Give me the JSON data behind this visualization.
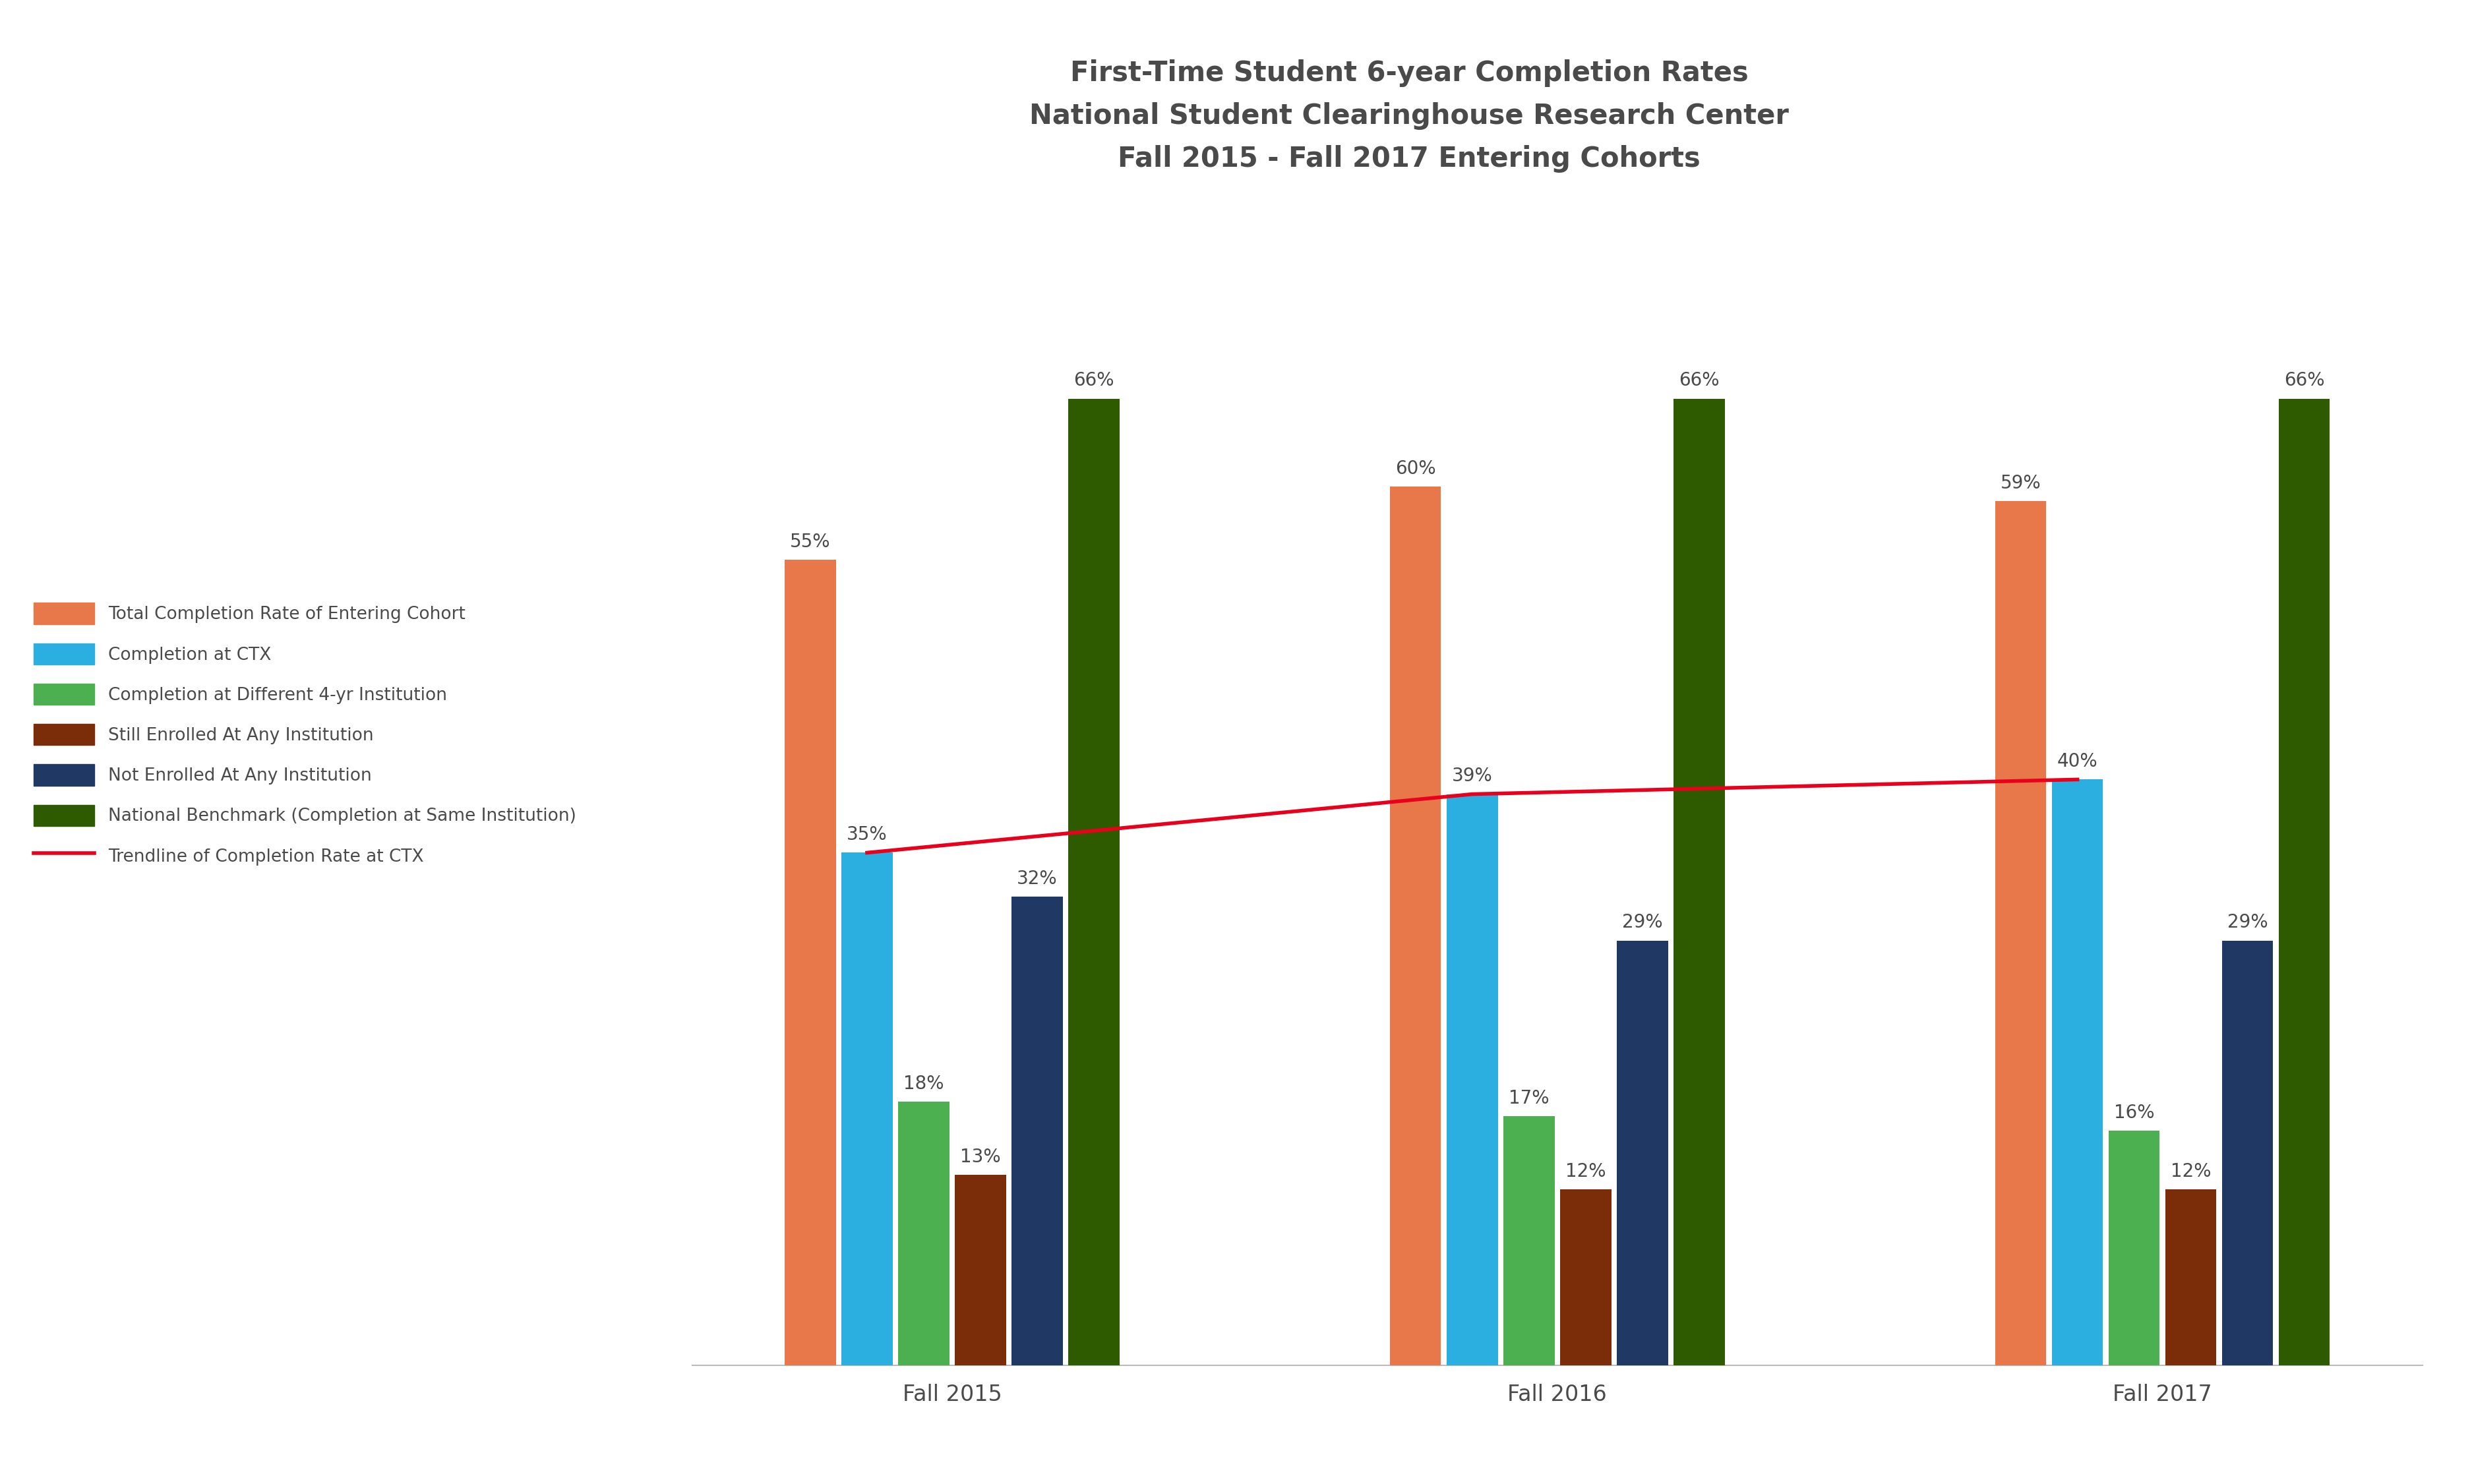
{
  "title": "First-Time Student 6-year Completion Rates\nNational Student Clearinghouse Research Center\nFall 2015 - Fall 2017 Entering Cohorts",
  "title_fontsize": 30,
  "title_fontweight": "bold",
  "background_color": "#ffffff",
  "categories": [
    "Fall 2015",
    "Fall 2016",
    "Fall 2017"
  ],
  "series": {
    "Total Completion Rate of Entering Cohort": {
      "values": [
        55,
        60,
        59
      ],
      "color": "#E8784A"
    },
    "Completion at CTX": {
      "values": [
        35,
        39,
        40
      ],
      "color": "#2BAEE0"
    },
    "Completion at Different 4-yr Institution": {
      "values": [
        18,
        17,
        16
      ],
      "color": "#4CAF50"
    },
    "Still Enrolled At Any Institution": {
      "values": [
        13,
        12,
        12
      ],
      "color": "#7B2D0A"
    },
    "Not Enrolled At Any Institution": {
      "values": [
        32,
        29,
        29
      ],
      "color": "#1F3864"
    },
    "National Benchmark (Completion at Same Institution)": {
      "values": [
        66,
        66,
        66
      ],
      "color": "#2E5B00"
    }
  },
  "trendline": {
    "label": "Trendline of Completion Rate at CTX",
    "color": "#E8001C",
    "linewidth": 4
  },
  "bar_width": 0.12,
  "ylim": [
    0,
    76
  ],
  "tick_fontsize": 24,
  "legend_fontsize": 19,
  "bar_label_fontsize": 20,
  "text_color": "#4A4A4A",
  "group_centers": [
    0.72,
    2.0,
    3.28
  ]
}
